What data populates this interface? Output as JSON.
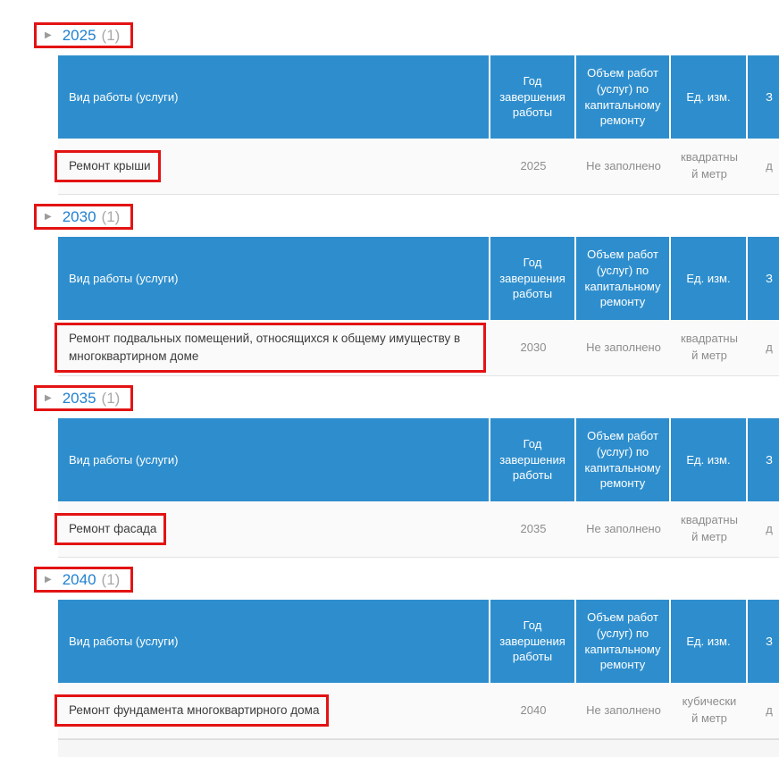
{
  "icons": {
    "expander": "▶"
  },
  "colors": {
    "annotation_red": "#e31313",
    "table_header_blue": "#2e8ecd",
    "year_link_blue": "#2181d0"
  },
  "table_columns": {
    "work": "Вид работы (услуги)",
    "year": "Год завершения работы",
    "volume": "Объем работ (услуг) по капитальному ремонту",
    "unit": "Ед. изм.",
    "cut": "З"
  },
  "sections": [
    {
      "year": "2025",
      "count": "(1)",
      "row": {
        "work": "Ремонт крыши",
        "year": "2025",
        "volume": "Не заполнено",
        "unit": "квадратный метр",
        "cut": "д"
      }
    },
    {
      "year": "2030",
      "count": "(1)",
      "row": {
        "work": "Ремонт подвальных помещений, относящихся к общему имуществу в многоквартирном доме",
        "year": "2030",
        "volume": "Не заполнено",
        "unit": "квадратный метр",
        "cut": "д"
      }
    },
    {
      "year": "2035",
      "count": "(1)",
      "row": {
        "work": "Ремонт фасада",
        "year": "2035",
        "volume": "Не заполнено",
        "unit": "квадратный метр",
        "cut": "д"
      }
    },
    {
      "year": "2040",
      "count": "(1)",
      "row": {
        "work": "Ремонт фундамента многоквартирного дома",
        "year": "2040",
        "volume": "Не заполнено",
        "unit": "кубический метр",
        "cut": "д"
      }
    }
  ]
}
